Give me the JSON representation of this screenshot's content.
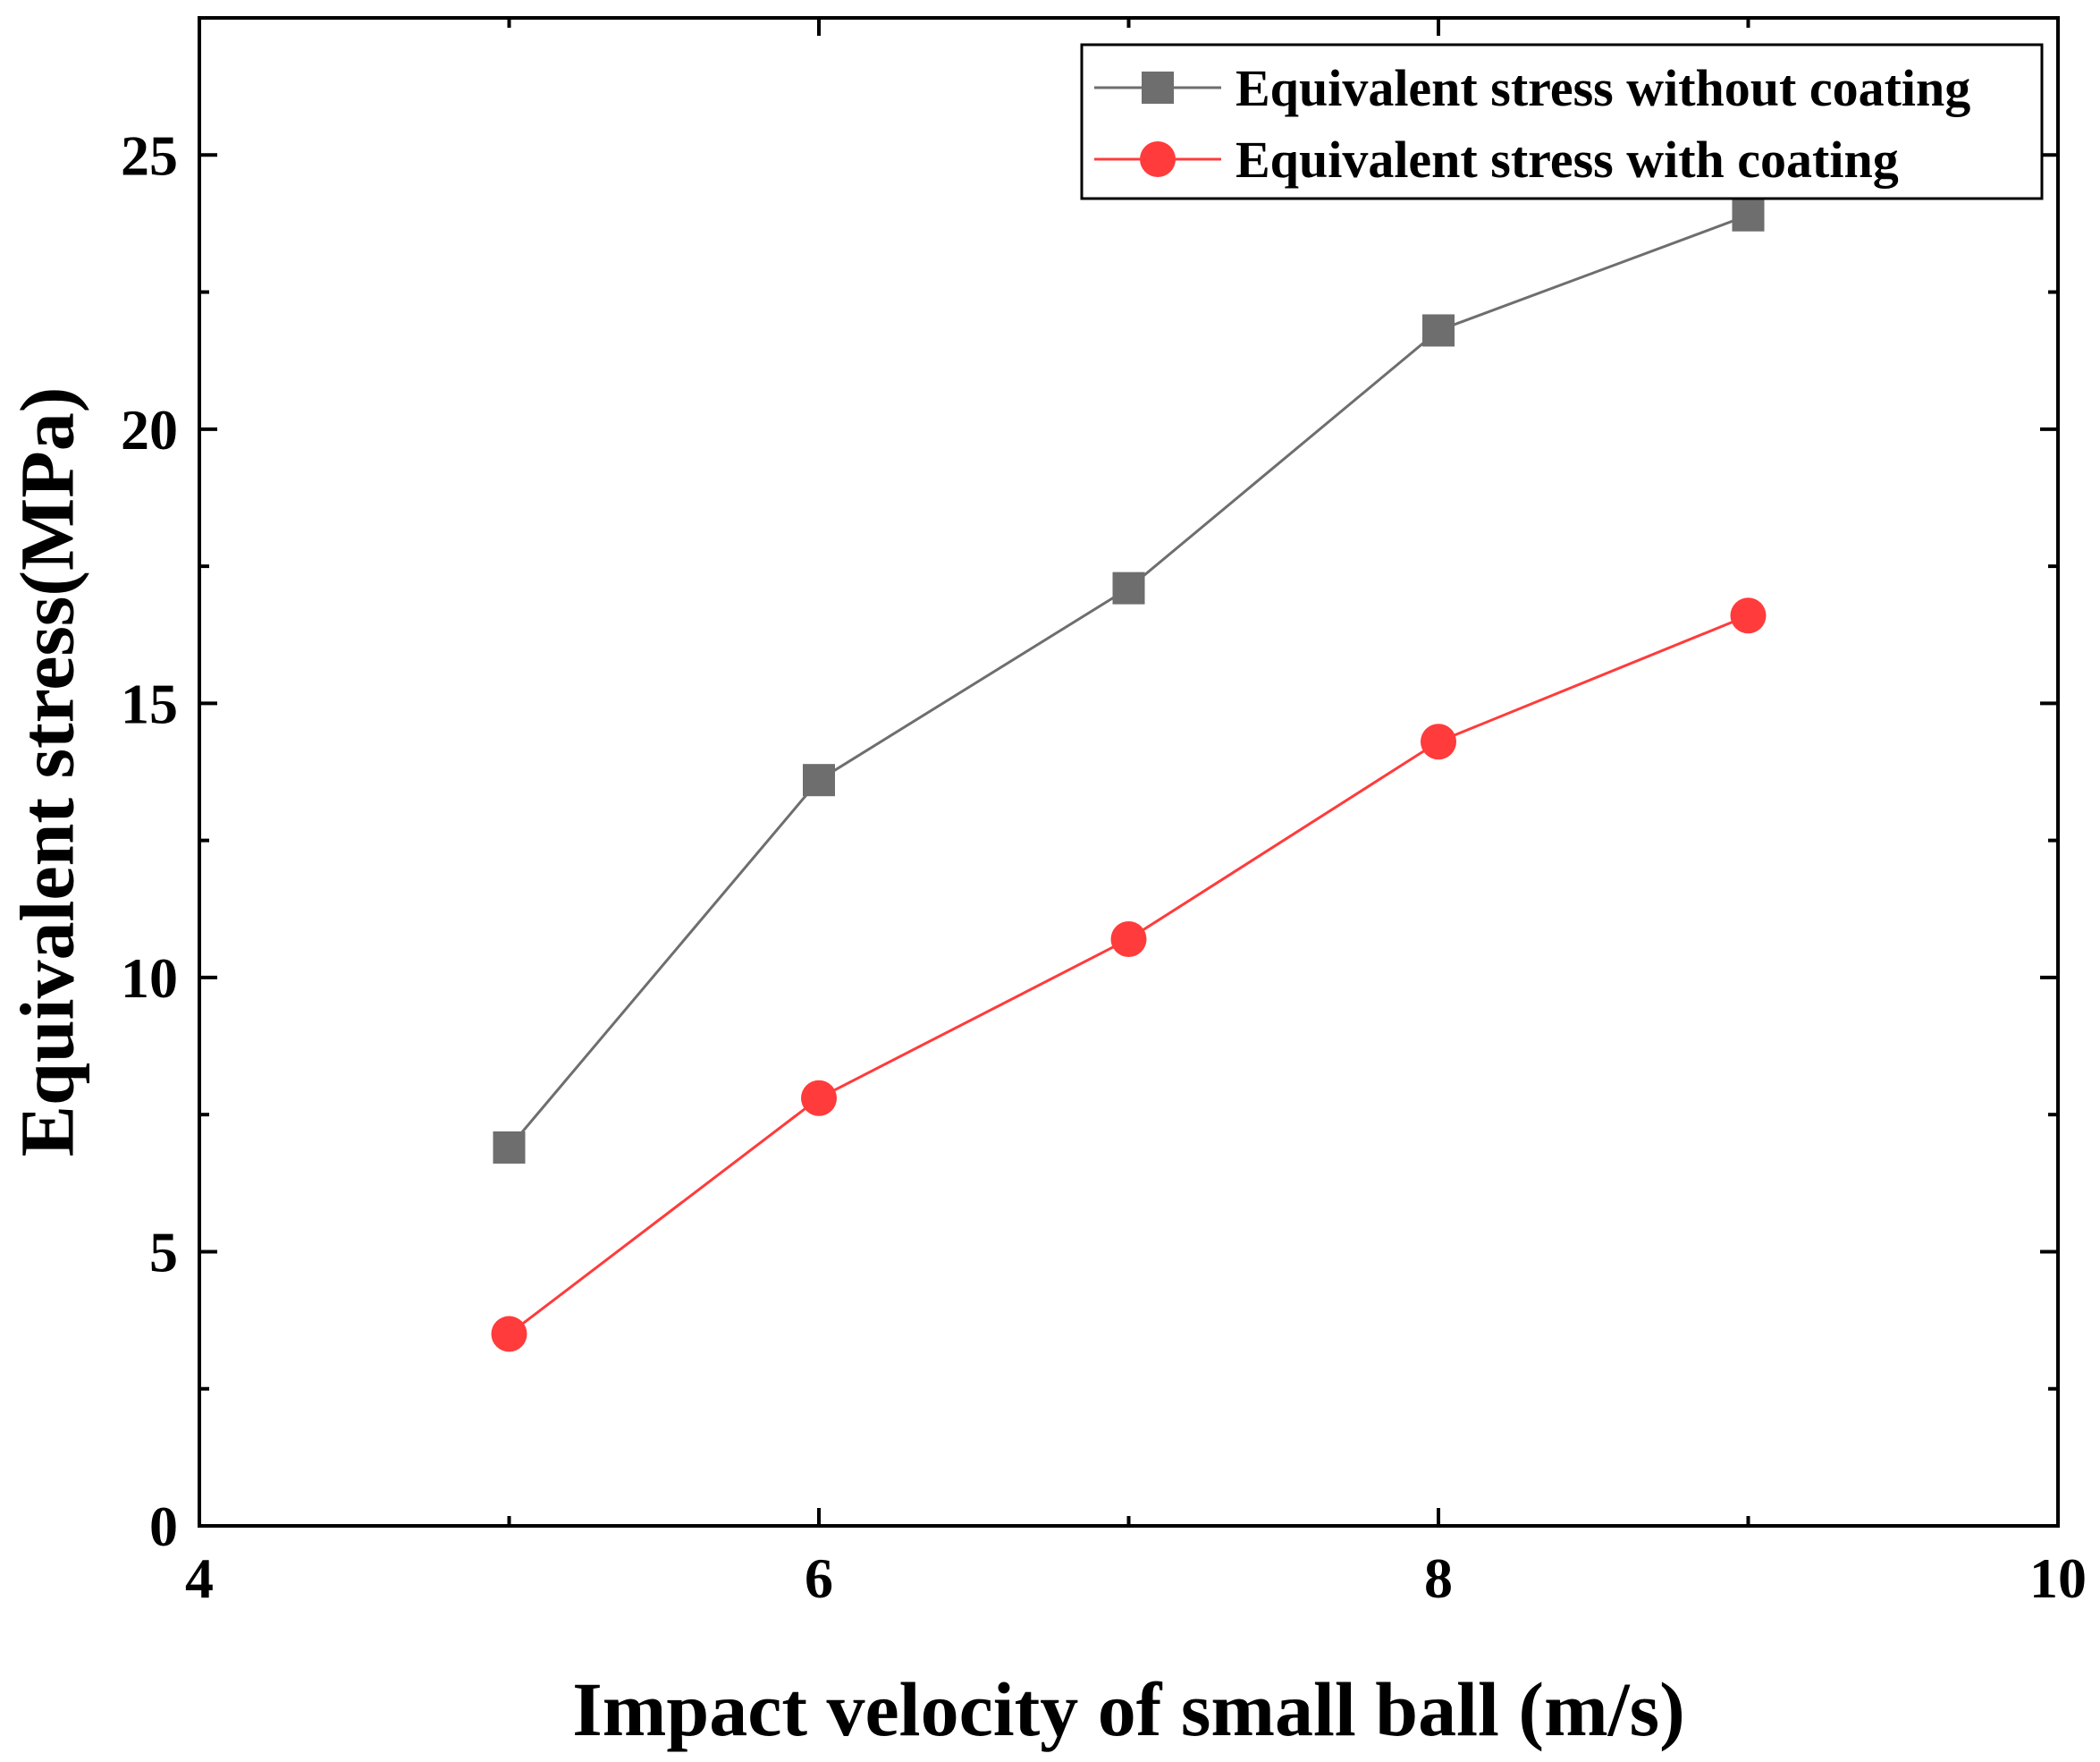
{
  "chart_data": {
    "type": "line",
    "title": "",
    "xlabel": "Impact velocity of small ball (m/s)",
    "ylabel": "Equivalent stress(MPa)",
    "xlim": [
      4,
      10
    ],
    "ylim": [
      0,
      27.5
    ],
    "x_major_ticks": [
      4,
      6,
      8,
      10
    ],
    "x_minor_ticks": [
      5,
      7,
      9
    ],
    "y_major_ticks": [
      0,
      5,
      10,
      15,
      20,
      25
    ],
    "y_minor_ticks": [
      2.5,
      7.5,
      12.5,
      17.5,
      22.5
    ],
    "x_tick_labels": [
      "4",
      "6",
      "8",
      "10"
    ],
    "y_tick_labels": [
      "0",
      "5",
      "10",
      "15",
      "20",
      "25"
    ],
    "grid": false,
    "legend_position": "top-right",
    "series": [
      {
        "name": "Equivalent stress without coating",
        "marker": "square",
        "color": "#6e6e6e",
        "x": [
          5,
          6,
          7,
          8,
          9
        ],
        "y": [
          6.9,
          13.6,
          17.1,
          21.8,
          23.9
        ]
      },
      {
        "name": "Equivalent stress with coating",
        "marker": "circle",
        "color": "#ff3b3b",
        "x": [
          5,
          6,
          7,
          8,
          9
        ],
        "y": [
          3.5,
          7.8,
          10.7,
          14.3,
          16.6
        ]
      }
    ]
  }
}
